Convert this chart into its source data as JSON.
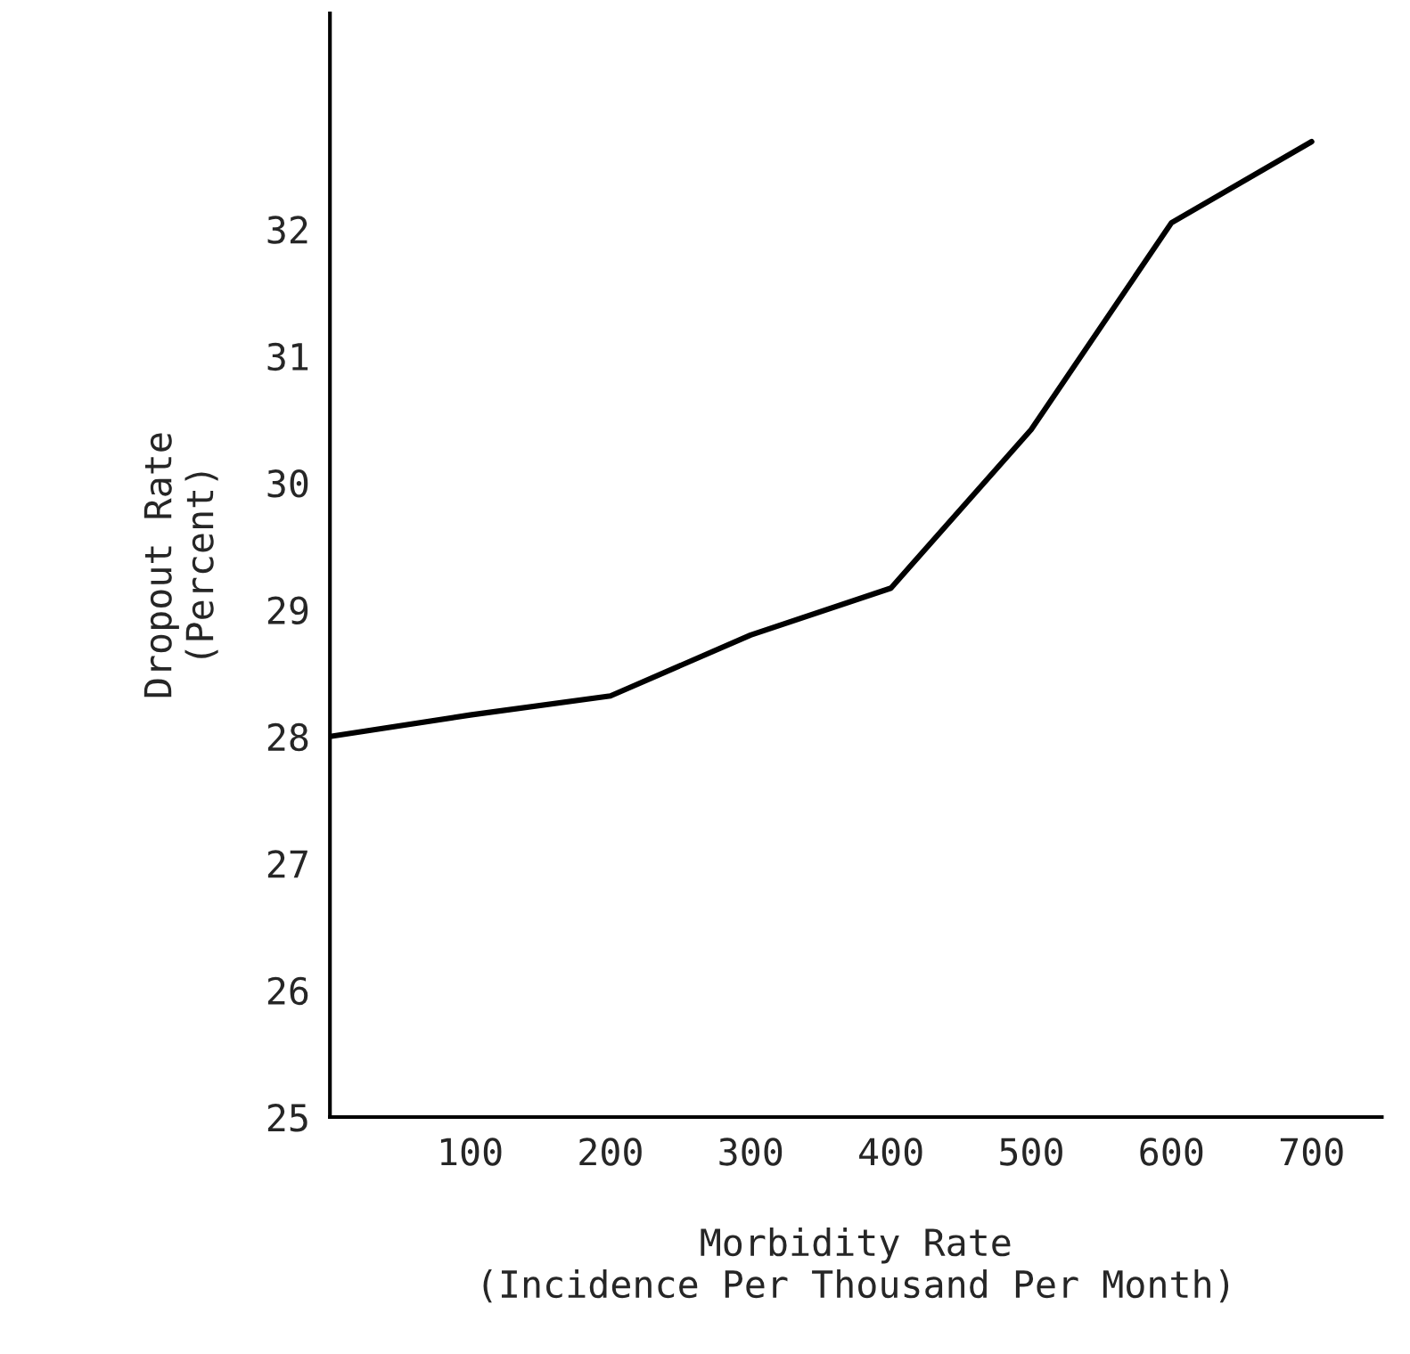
{
  "chart_data": {
    "type": "line",
    "xlabel": "Morbidity Rate\n(Incidence Per Thousand Per Month)",
    "ylabel": "Dropout Rate\n(Percent)",
    "x": [
      0,
      100,
      200,
      300,
      400,
      500,
      600,
      700
    ],
    "series": [
      {
        "color": "#000000",
        "values": [
          28.0,
          28.17,
          28.32,
          28.8,
          29.17,
          30.42,
          32.05,
          32.69
        ]
      }
    ],
    "xlim": [
      0,
      750
    ],
    "xticks": [
      100,
      200,
      300,
      400,
      500,
      600,
      700
    ],
    "ylim": [
      25,
      33.7
    ],
    "yticks": [
      25,
      26,
      27,
      28,
      29,
      30,
      31,
      32
    ],
    "grid": false,
    "legend": false,
    "marker": "none",
    "line_style": "solid"
  }
}
